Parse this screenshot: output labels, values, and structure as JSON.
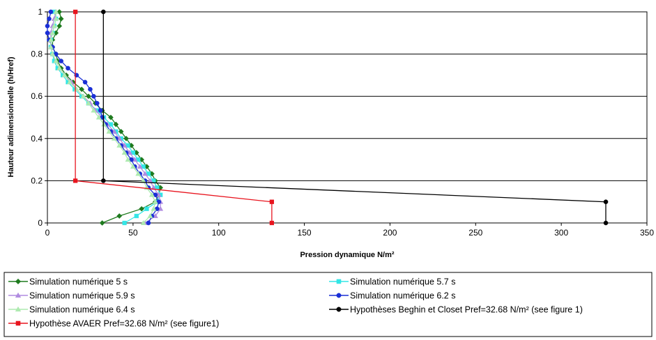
{
  "chart_data": {
    "type": "line",
    "title": "",
    "xlabel": "Pression dynamique N/m²",
    "ylabel": "Hauteur adimensionnelle (h/Href)",
    "xlim": [
      0,
      350
    ],
    "ylim": [
      0,
      1
    ],
    "x_ticks": [
      "0",
      "50",
      "100",
      "150",
      "200",
      "250",
      "300",
      "350"
    ],
    "y_ticks": [
      "0",
      "0.2",
      "0.4",
      "0.6",
      "0.8",
      "1"
    ],
    "grid": "horizontal",
    "legend_position": "bottom",
    "series": [
      {
        "name": "Simulation numérique 5 s",
        "color": "#1e7a1e",
        "marker": "diamond",
        "points": [
          [
            32,
            0
          ],
          [
            42,
            0.033
          ],
          [
            55,
            0.067
          ],
          [
            63,
            0.1
          ],
          [
            65,
            0.133
          ],
          [
            66,
            0.167
          ],
          [
            63,
            0.2
          ],
          [
            61,
            0.233
          ],
          [
            58,
            0.267
          ],
          [
            55,
            0.3
          ],
          [
            52,
            0.333
          ],
          [
            49,
            0.367
          ],
          [
            46,
            0.4
          ],
          [
            43,
            0.433
          ],
          [
            40,
            0.467
          ],
          [
            37,
            0.5
          ],
          [
            32,
            0.533
          ],
          [
            28,
            0.567
          ],
          [
            24,
            0.6
          ],
          [
            20,
            0.633
          ],
          [
            15,
            0.667
          ],
          [
            11,
            0.7
          ],
          [
            8,
            0.733
          ],
          [
            6,
            0.767
          ],
          [
            5,
            0.8
          ],
          [
            3,
            0.833
          ],
          [
            3,
            0.867
          ],
          [
            5,
            0.9
          ],
          [
            7,
            0.933
          ],
          [
            8,
            0.967
          ],
          [
            7,
            1.0
          ]
        ]
      },
      {
        "name": "Simulation numérique 5.7 s",
        "color": "#33e6e6",
        "marker": "square",
        "points": [
          [
            45,
            0
          ],
          [
            52,
            0.033
          ],
          [
            58,
            0.067
          ],
          [
            64,
            0.1
          ],
          [
            66,
            0.133
          ],
          [
            64,
            0.167
          ],
          [
            62,
            0.2
          ],
          [
            59,
            0.233
          ],
          [
            56,
            0.267
          ],
          [
            53,
            0.3
          ],
          [
            50,
            0.333
          ],
          [
            47,
            0.367
          ],
          [
            43,
            0.4
          ],
          [
            40,
            0.433
          ],
          [
            37,
            0.467
          ],
          [
            33,
            0.5
          ],
          [
            29,
            0.533
          ],
          [
            24,
            0.567
          ],
          [
            20,
            0.6
          ],
          [
            16,
            0.633
          ],
          [
            12,
            0.667
          ],
          [
            9,
            0.7
          ],
          [
            6,
            0.733
          ],
          [
            4,
            0.767
          ],
          [
            3,
            0.8
          ],
          [
            2,
            0.833
          ],
          [
            2,
            0.867
          ],
          [
            3,
            0.9
          ],
          [
            4,
            0.933
          ],
          [
            5,
            0.967
          ],
          [
            4,
            1.0
          ]
        ]
      },
      {
        "name": "Simulation numérique 5.9 s",
        "color": "#b08ce0",
        "marker": "triangle",
        "points": [
          [
            57,
            0
          ],
          [
            63,
            0.033
          ],
          [
            66,
            0.067
          ],
          [
            66,
            0.1
          ],
          [
            65,
            0.133
          ],
          [
            62,
            0.167
          ],
          [
            60,
            0.2
          ],
          [
            57,
            0.233
          ],
          [
            54,
            0.267
          ],
          [
            51,
            0.3
          ],
          [
            48,
            0.333
          ],
          [
            45,
            0.367
          ],
          [
            42,
            0.4
          ],
          [
            39,
            0.433
          ],
          [
            35,
            0.467
          ],
          [
            32,
            0.5
          ],
          [
            28,
            0.533
          ],
          [
            25,
            0.567
          ],
          [
            21,
            0.6
          ],
          [
            17,
            0.633
          ],
          [
            14,
            0.667
          ],
          [
            10,
            0.7
          ],
          [
            7,
            0.733
          ],
          [
            5,
            0.767
          ],
          [
            3,
            0.8
          ],
          [
            2,
            0.833
          ],
          [
            2,
            0.867
          ],
          [
            2,
            0.9
          ],
          [
            3,
            0.933
          ],
          [
            4,
            0.967
          ],
          [
            5,
            1.0
          ]
        ]
      },
      {
        "name": "Simulation numérique 6.2 s",
        "color": "#1a2fd6",
        "marker": "circle",
        "points": [
          [
            59,
            0
          ],
          [
            61,
            0.033
          ],
          [
            64,
            0.067
          ],
          [
            65,
            0.1
          ],
          [
            63,
            0.133
          ],
          [
            59,
            0.167
          ],
          [
            57,
            0.2
          ],
          [
            54,
            0.233
          ],
          [
            51,
            0.267
          ],
          [
            49,
            0.3
          ],
          [
            46,
            0.333
          ],
          [
            43,
            0.367
          ],
          [
            40,
            0.4
          ],
          [
            37,
            0.433
          ],
          [
            34,
            0.467
          ],
          [
            32,
            0.5
          ],
          [
            31,
            0.533
          ],
          [
            29,
            0.567
          ],
          [
            27,
            0.6
          ],
          [
            25,
            0.633
          ],
          [
            22,
            0.667
          ],
          [
            17,
            0.7
          ],
          [
            12,
            0.733
          ],
          [
            8,
            0.767
          ],
          [
            5,
            0.8
          ],
          [
            3,
            0.833
          ],
          [
            1,
            0.867
          ],
          [
            0,
            0.9
          ],
          [
            0,
            0.933
          ],
          [
            1,
            0.967
          ],
          [
            2,
            1.0
          ]
        ]
      },
      {
        "name": "Simulation numérique 6.4 s",
        "color": "#aeeab0",
        "marker": "triangle",
        "points": [
          [
            56,
            0
          ],
          [
            60,
            0.033
          ],
          [
            62,
            0.067
          ],
          [
            63,
            0.1
          ],
          [
            61,
            0.133
          ],
          [
            58,
            0.167
          ],
          [
            56,
            0.2
          ],
          [
            53,
            0.233
          ],
          [
            50,
            0.267
          ],
          [
            47,
            0.3
          ],
          [
            45,
            0.333
          ],
          [
            42,
            0.367
          ],
          [
            39,
            0.4
          ],
          [
            36,
            0.433
          ],
          [
            33,
            0.467
          ],
          [
            30,
            0.5
          ],
          [
            27,
            0.533
          ],
          [
            24,
            0.567
          ],
          [
            21,
            0.6
          ],
          [
            17,
            0.633
          ],
          [
            13,
            0.667
          ],
          [
            10,
            0.7
          ],
          [
            7,
            0.733
          ],
          [
            5,
            0.767
          ],
          [
            3,
            0.8
          ],
          [
            2,
            0.833
          ],
          [
            2,
            0.867
          ],
          [
            3,
            0.9
          ],
          [
            4,
            0.933
          ],
          [
            5,
            0.967
          ],
          [
            5,
            1.0
          ]
        ]
      },
      {
        "name": "Hypothèses Beghin et Closet  Pref=32.68 N/m² (see figure 1)",
        "color": "#000000",
        "marker": "circle",
        "points": [
          [
            326,
            0
          ],
          [
            326,
            0.1
          ],
          [
            32.68,
            0.2
          ],
          [
            32.68,
            1.0
          ]
        ]
      },
      {
        "name": "Hypothèse AVAER Pref=32.68  N/m² (see figure1)",
        "color": "#e8141e",
        "marker": "square",
        "points": [
          [
            131,
            0
          ],
          [
            131,
            0.1
          ],
          [
            16.34,
            0.2
          ],
          [
            16.34,
            1.0
          ]
        ]
      }
    ]
  }
}
